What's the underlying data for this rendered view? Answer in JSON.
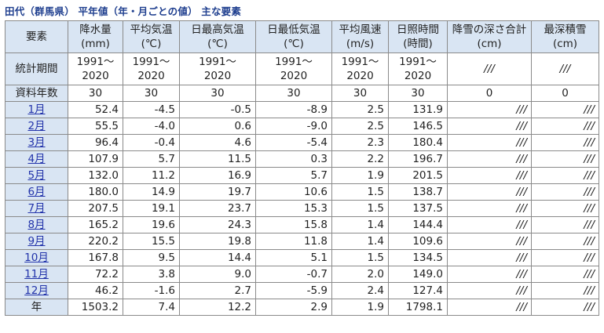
{
  "title": "田代（群馬県） 平年値（年・月ごとの値） 主な要素",
  "headers": [
    {
      "l1": "要素",
      "l2": ""
    },
    {
      "l1": "降水量",
      "l2": "(mm)"
    },
    {
      "l1": "平均気温",
      "l2": "(℃)"
    },
    {
      "l1": "日最高気温",
      "l2": "(℃)"
    },
    {
      "l1": "日最低気温",
      "l2": "(℃)"
    },
    {
      "l1": "平均風速",
      "l2": "(m/s)"
    },
    {
      "l1": "日照時間",
      "l2": "(時間)"
    },
    {
      "l1": "降雪の深さ合計",
      "l2": "(cm)"
    },
    {
      "l1": "最深積雪",
      "l2": "(cm)"
    }
  ],
  "period_row": {
    "label": "統計期間",
    "cells": [
      {
        "l1": "1991～",
        "l2": "2020"
      },
      {
        "l1": "1991～",
        "l2": "2020"
      },
      {
        "l1": "1991～",
        "l2": "2020"
      },
      {
        "l1": "1991～",
        "l2": "2020"
      },
      {
        "l1": "1991～",
        "l2": "2020"
      },
      {
        "l1": "1991～",
        "l2": "2020"
      },
      {
        "l1": "///",
        "l2": ""
      },
      {
        "l1": "///",
        "l2": ""
      }
    ]
  },
  "years_row": {
    "label": "資料年数",
    "cells": [
      "30",
      "30",
      "30",
      "30",
      "30",
      "30",
      "0",
      "0"
    ]
  },
  "months": [
    {
      "label": "1月",
      "values": [
        "52.4",
        "-4.5",
        "-0.5",
        "-8.9",
        "2.5",
        "131.9",
        "///",
        "///"
      ]
    },
    {
      "label": "2月",
      "values": [
        "55.5",
        "-4.0",
        "0.6",
        "-9.0",
        "2.5",
        "146.5",
        "///",
        "///"
      ]
    },
    {
      "label": "3月",
      "values": [
        "96.4",
        "-0.4",
        "4.6",
        "-5.4",
        "2.3",
        "180.4",
        "///",
        "///"
      ]
    },
    {
      "label": "4月",
      "values": [
        "107.9",
        "5.7",
        "11.5",
        "0.3",
        "2.2",
        "196.7",
        "///",
        "///"
      ]
    },
    {
      "label": "5月",
      "values": [
        "132.0",
        "11.2",
        "16.9",
        "5.7",
        "1.9",
        "201.5",
        "///",
        "///"
      ]
    },
    {
      "label": "6月",
      "values": [
        "180.0",
        "14.9",
        "19.7",
        "10.6",
        "1.5",
        "138.7",
        "///",
        "///"
      ]
    },
    {
      "label": "7月",
      "values": [
        "207.5",
        "19.1",
        "23.7",
        "15.3",
        "1.5",
        "137.5",
        "///",
        "///"
      ]
    },
    {
      "label": "8月",
      "values": [
        "165.2",
        "19.6",
        "24.3",
        "15.8",
        "1.4",
        "144.4",
        "///",
        "///"
      ]
    },
    {
      "label": "9月",
      "values": [
        "220.2",
        "15.5",
        "19.8",
        "11.8",
        "1.4",
        "109.6",
        "///",
        "///"
      ]
    },
    {
      "label": "10月",
      "values": [
        "167.8",
        "9.5",
        "14.4",
        "5.1",
        "1.5",
        "134.5",
        "///",
        "///"
      ]
    },
    {
      "label": "11月",
      "values": [
        "72.2",
        "3.8",
        "9.0",
        "-0.7",
        "2.0",
        "149.0",
        "///",
        "///"
      ]
    },
    {
      "label": "12月",
      "values": [
        "46.2",
        "-1.6",
        "2.7",
        "-5.9",
        "2.4",
        "127.4",
        "///",
        "///"
      ]
    }
  ],
  "annual_row": {
    "label": "年",
    "values": [
      "1503.2",
      "7.4",
      "12.2",
      "2.9",
      "1.9",
      "1798.1",
      "///",
      "///"
    ]
  },
  "colors": {
    "header_bg": "#d9e5f3",
    "title": "#1f3f8f",
    "link": "#2233aa",
    "border": "#8a8a8a"
  }
}
